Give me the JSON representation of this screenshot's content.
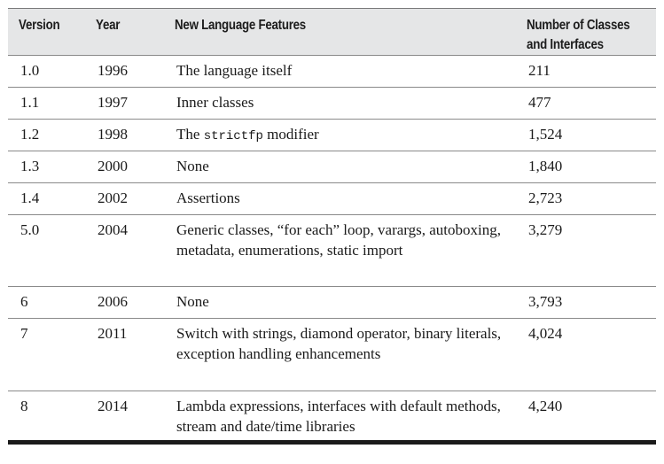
{
  "headers": {
    "version": "Version",
    "year": "Year",
    "features": "New Language Features",
    "classes": "Number of Classes and Interfaces"
  },
  "rows": [
    {
      "version": "1.0",
      "year": "1996",
      "features": "The language itself",
      "classes": "211"
    },
    {
      "version": "1.1",
      "year": "1997",
      "features": "Inner classes",
      "classes": "477"
    },
    {
      "version": "1.2",
      "year": "1998",
      "features_pre": "The ",
      "features_code": "strictfp",
      "features_post": " modifier",
      "classes": "1,524"
    },
    {
      "version": "1.3",
      "year": "2000",
      "features": "None",
      "classes": "1,840"
    },
    {
      "version": "1.4",
      "year": "2002",
      "features": "Assertions",
      "classes": "2,723"
    },
    {
      "version": "5.0",
      "year": "2004",
      "features": "Generic classes, “for each” loop, varargs, autoboxing, metadata, enumerations, static import",
      "classes": "3,279"
    },
    {
      "version": "6",
      "year": "2006",
      "features": "None",
      "classes": "3,793"
    },
    {
      "version": "7",
      "year": "2011",
      "features": "Switch with strings, diamond operator, binary literals, exception handling enhancements",
      "classes": "4,024"
    },
    {
      "version": "8",
      "year": "2014",
      "features": "Lambda expressions, interfaces with default methods, stream and date/time libraries",
      "classes": "4,240"
    }
  ]
}
